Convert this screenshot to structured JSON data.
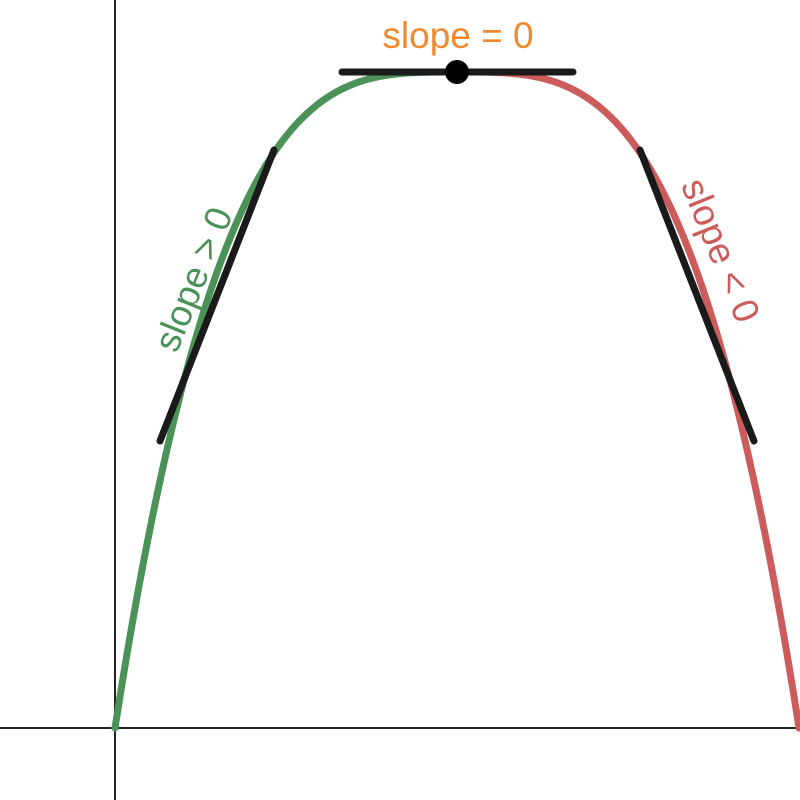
{
  "diagram": {
    "labels": {
      "slope_zero": "slope = 0",
      "slope_positive": "slope > 0",
      "slope_negative": "slope < 0"
    },
    "colors": {
      "rising_curve": "#4a9257",
      "falling_curve": "#cc5b5b",
      "zero_label": "#f08a2e",
      "tangent": "#1a1a1a",
      "axes": "#222222"
    }
  }
}
